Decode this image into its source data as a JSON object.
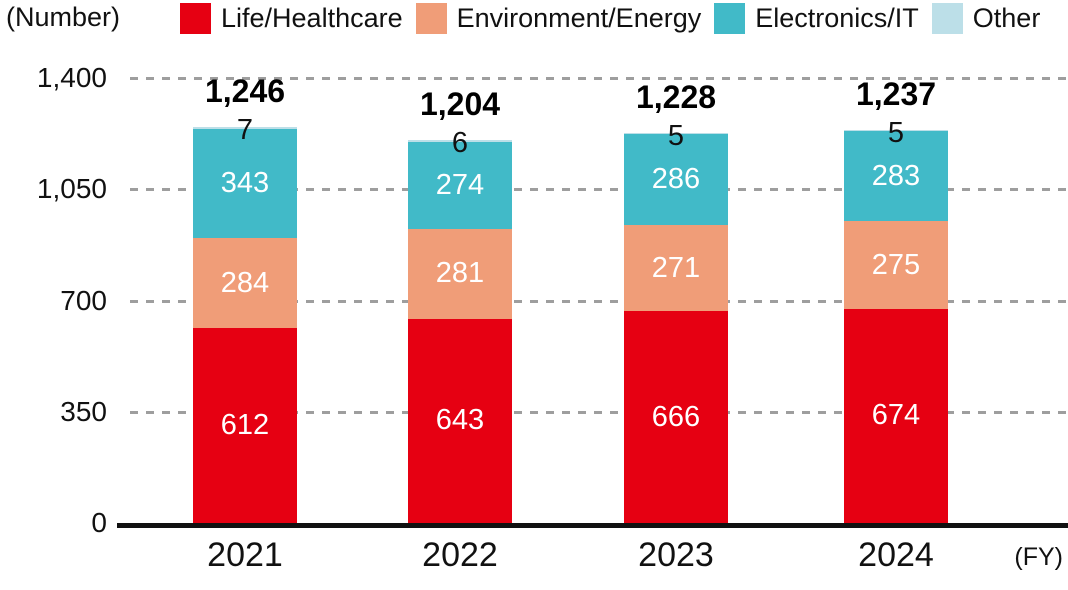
{
  "chart_data": {
    "type": "bar",
    "subtype": "stacked-vertical",
    "unit_label": "(Number)",
    "x_axis_label": "(FY)",
    "categories": [
      "2021",
      "2022",
      "2023",
      "2024"
    ],
    "series": [
      {
        "name": "Life/Healthcare",
        "color": "#E60012",
        "label_position": "inside",
        "values": [
          612,
          643,
          666,
          674
        ]
      },
      {
        "name": "Environment/Energy",
        "color": "#F09D78",
        "label_position": "inside",
        "values": [
          284,
          281,
          271,
          275
        ]
      },
      {
        "name": "Electronics/IT",
        "color": "#41BAC8",
        "label_position": "inside",
        "values": [
          343,
          274,
          286,
          283
        ]
      },
      {
        "name": "Other",
        "color": "#BCDFE8",
        "label_position": "outside",
        "values": [
          7,
          6,
          5,
          5
        ]
      }
    ],
    "totals": [
      1246,
      1204,
      1228,
      1237
    ],
    "totals_formatted": [
      "1,246",
      "1,204",
      "1,228",
      "1,237"
    ],
    "y_ticks": [
      {
        "value": 0,
        "label": "0"
      },
      {
        "value": 350,
        "label": "350"
      },
      {
        "value": 700,
        "label": "700"
      },
      {
        "value": 1050,
        "label": "1,050"
      },
      {
        "value": 1400,
        "label": "1,400"
      }
    ],
    "ylim": [
      0,
      1400
    ],
    "grid": "dashed-horizontal",
    "legend_position": "top",
    "colors": {
      "axis": "#111111",
      "gridline": "#9e9e9e",
      "total_label": "#000000",
      "segment_label": "#ffffff",
      "outside_label": "#111111"
    }
  }
}
